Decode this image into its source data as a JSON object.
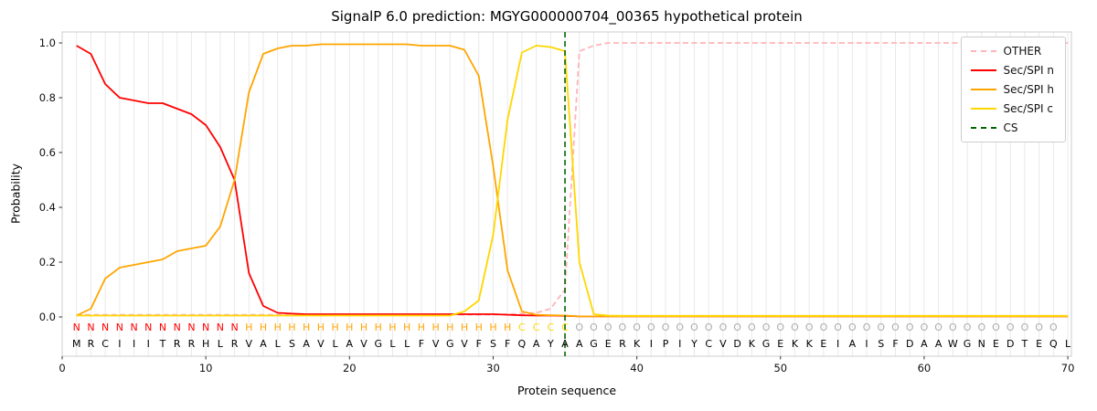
{
  "chart_data": {
    "type": "line",
    "title": "SignalP 6.0 prediction: MGYG000000704_00365 hypothetical protein",
    "xlabel": "Protein sequence",
    "ylabel": "Probability",
    "xlim": [
      0,
      70.25
    ],
    "ylim": [
      -0.143,
      1.04
    ],
    "x_ticks": [
      0,
      10,
      20,
      30,
      40,
      50,
      60,
      70
    ],
    "y_ticks": [
      0.0,
      0.2,
      0.4,
      0.6,
      0.8,
      1.0
    ],
    "grid": "vertical-per-residue",
    "grid_color": "#e9e9e9",
    "spine_color": "#cccccc",
    "tick_color": "#333333",
    "legend_position": "upper right",
    "x": [
      1,
      2,
      3,
      4,
      5,
      6,
      7,
      8,
      9,
      10,
      11,
      12,
      13,
      14,
      15,
      16,
      17,
      18,
      19,
      20,
      21,
      22,
      23,
      24,
      25,
      26,
      27,
      28,
      29,
      30,
      31,
      32,
      33,
      34,
      35,
      36,
      37,
      38,
      39,
      40,
      41,
      42,
      43,
      44,
      45,
      46,
      47,
      48,
      49,
      50,
      51,
      52,
      53,
      54,
      55,
      56,
      57,
      58,
      59,
      60,
      61,
      62,
      63,
      64,
      65,
      66,
      67,
      68,
      69,
      70
    ],
    "series": [
      {
        "name": "OTHER",
        "color": "#ffb3ba",
        "dash": "dashed",
        "values": [
          0.008,
          0.008,
          0.008,
          0.008,
          0.008,
          0.008,
          0.008,
          0.008,
          0.008,
          0.008,
          0.008,
          0.008,
          0.008,
          0.008,
          0.008,
          0.008,
          0.008,
          0.008,
          0.008,
          0.008,
          0.008,
          0.008,
          0.008,
          0.008,
          0.008,
          0.008,
          0.008,
          0.008,
          0.008,
          0.008,
          0.01,
          0.012,
          0.015,
          0.03,
          0.1,
          0.97,
          0.99,
          1.0,
          1.0,
          1.0,
          1.0,
          1.0,
          1.0,
          1.0,
          1.0,
          1.0,
          1.0,
          1.0,
          1.0,
          1.0,
          1.0,
          1.0,
          1.0,
          1.0,
          1.0,
          1.0,
          1.0,
          1.0,
          1.0,
          1.0,
          1.0,
          1.0,
          1.0,
          1.0,
          1.0,
          1.0,
          1.0,
          1.0,
          1.0,
          1.0
        ]
      },
      {
        "name": "Sec/SPI n",
        "color": "#ff0000",
        "dash": "solid",
        "values": [
          0.99,
          0.96,
          0.85,
          0.8,
          0.79,
          0.78,
          0.78,
          0.76,
          0.74,
          0.7,
          0.62,
          0.5,
          0.16,
          0.04,
          0.015,
          0.012,
          0.01,
          0.01,
          0.01,
          0.01,
          0.01,
          0.01,
          0.01,
          0.01,
          0.01,
          0.01,
          0.01,
          0.01,
          0.01,
          0.01,
          0.008,
          0.006,
          0.005,
          0.005,
          0.004,
          0.002,
          0.002,
          0.002,
          0.002,
          0.002,
          0.002,
          0.002,
          0.002,
          0.002,
          0.002,
          0.002,
          0.002,
          0.002,
          0.002,
          0.002,
          0.002,
          0.002,
          0.002,
          0.002,
          0.002,
          0.002,
          0.002,
          0.002,
          0.002,
          0.002,
          0.002,
          0.002,
          0.002,
          0.002,
          0.002,
          0.002,
          0.002,
          0.002,
          0.002,
          0.002
        ]
      },
      {
        "name": "Sec/SPI h",
        "color": "#ffa500",
        "dash": "solid",
        "values": [
          0.005,
          0.03,
          0.14,
          0.18,
          0.19,
          0.2,
          0.21,
          0.24,
          0.25,
          0.26,
          0.33,
          0.5,
          0.82,
          0.96,
          0.98,
          0.99,
          0.99,
          0.995,
          0.995,
          0.995,
          0.995,
          0.995,
          0.995,
          0.995,
          0.99,
          0.99,
          0.99,
          0.975,
          0.88,
          0.55,
          0.17,
          0.02,
          0.008,
          0.006,
          0.005,
          0.002,
          0.002,
          0.002,
          0.002,
          0.002,
          0.002,
          0.002,
          0.002,
          0.002,
          0.002,
          0.002,
          0.002,
          0.002,
          0.002,
          0.002,
          0.002,
          0.002,
          0.002,
          0.002,
          0.002,
          0.002,
          0.002,
          0.002,
          0.002,
          0.002,
          0.002,
          0.002,
          0.002,
          0.002,
          0.002,
          0.002,
          0.002,
          0.002,
          0.002,
          0.002
        ]
      },
      {
        "name": "Sec/SPI c",
        "color": "#ffd700",
        "dash": "solid",
        "values": [
          0.005,
          0.005,
          0.005,
          0.005,
          0.005,
          0.005,
          0.005,
          0.005,
          0.005,
          0.005,
          0.005,
          0.005,
          0.005,
          0.005,
          0.005,
          0.005,
          0.005,
          0.005,
          0.005,
          0.005,
          0.005,
          0.005,
          0.005,
          0.005,
          0.005,
          0.005,
          0.005,
          0.02,
          0.06,
          0.3,
          0.72,
          0.965,
          0.99,
          0.985,
          0.97,
          0.2,
          0.01,
          0.005,
          0.004,
          0.004,
          0.004,
          0.004,
          0.004,
          0.004,
          0.004,
          0.004,
          0.004,
          0.004,
          0.004,
          0.004,
          0.004,
          0.004,
          0.004,
          0.004,
          0.004,
          0.004,
          0.004,
          0.004,
          0.004,
          0.004,
          0.004,
          0.004,
          0.004,
          0.004,
          0.004,
          0.004,
          0.004,
          0.004,
          0.004,
          0.004
        ]
      }
    ],
    "cs_line": {
      "name": "CS",
      "x": 35,
      "color": "#006400",
      "dash": "dashed"
    },
    "legend": [
      {
        "label": "OTHER",
        "color": "#ffb3ba",
        "dash": "dashed"
      },
      {
        "label": "Sec/SPI n",
        "color": "#ff0000",
        "dash": "solid"
      },
      {
        "label": "Sec/SPI h",
        "color": "#ffa500",
        "dash": "solid"
      },
      {
        "label": "Sec/SPI c",
        "color": "#ffd700",
        "dash": "solid"
      },
      {
        "label": "CS",
        "color": "#006400",
        "dash": "dashed"
      }
    ],
    "sequence": "MRCIIITRRHLRVALSAVLAVGLLFVGVFSFQAYAAGERKIPIYCVDKGEKKEIAISFDAAWGNEDTEQL",
    "region_labels": "NNNNNNNNNNNNHHHHHHHHHHHHHHHHHHHCCCCOOOOOOOOOOOOOOOOOOOOOOOOOOOOOOOOOO",
    "region_colors": {
      "N": "#ff0000",
      "H": "#ffa500",
      "C": "#ffd700",
      "O": "#ababab"
    },
    "sequence_color": "#000000"
  }
}
